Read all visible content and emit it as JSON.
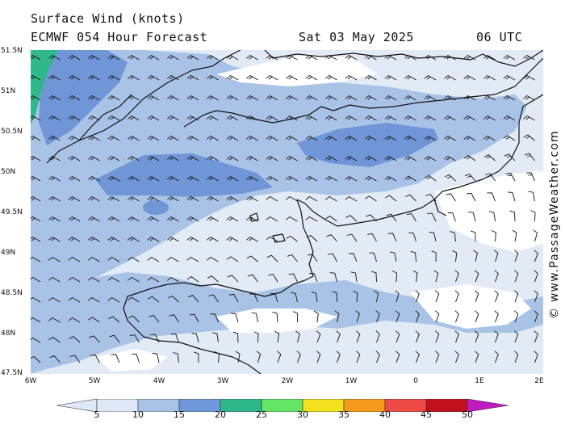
{
  "header": {
    "title": "Surface Wind (knots)",
    "model": "ECMWF 054 Hour Forecast",
    "date": "Sat 03 May 2025",
    "time": "06 UTC"
  },
  "credit": "© www.PassageWeather.com",
  "axes": {
    "lat_labels": [
      "51.5N",
      "51N",
      "50.5N",
      "50N",
      "49.5N",
      "49N",
      "48.5N",
      "48N",
      "47.5N"
    ],
    "lon_labels": [
      "6W",
      "5W",
      "4W",
      "3W",
      "2W",
      "1W",
      "0",
      "1E",
      "2E"
    ],
    "lon_range": [
      -6,
      2
    ],
    "lat_range": [
      47.5,
      51.5
    ]
  },
  "legend": {
    "labels": [
      "5",
      "10",
      "15",
      "20",
      "25",
      "30",
      "35",
      "40",
      "45",
      "50"
    ],
    "colors": [
      "#dfe8f6",
      "#a8c2e6",
      "#6f98da",
      "#2eb889",
      "#66e466",
      "#f2e11c",
      "#f59a1c",
      "#ee4a46",
      "#c2101a",
      "#c21ac2"
    ]
  },
  "fill_colors": {
    "sea_calm": "#e2eaf6",
    "band_10": "#a9c3e7",
    "band_15": "#7096d8",
    "band_20": "#2fb98a",
    "white": "#ffffff"
  },
  "wind_direction": "west to south-west over the Channel, northerly over France"
}
